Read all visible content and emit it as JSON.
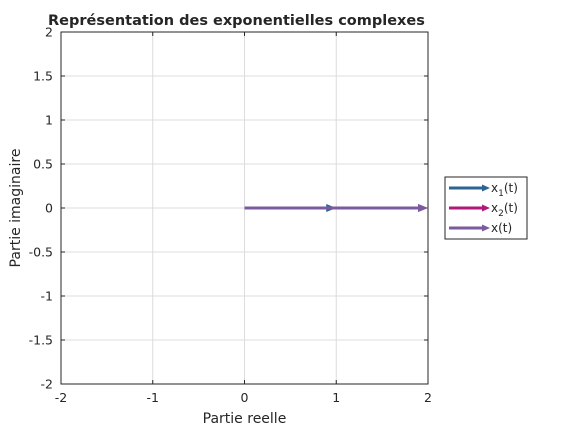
{
  "chart_data": {
    "type": "line",
    "title": "Représentation des exponentielles complexes",
    "xlabel": "Partie reelle",
    "ylabel": "Partie imaginaire",
    "xlim": [
      -2,
      2
    ],
    "ylim": [
      -2,
      2
    ],
    "xticks": [
      -2,
      -1,
      0,
      1,
      2
    ],
    "xtick_labels": [
      "-2",
      "-1",
      "0",
      "1",
      "2"
    ],
    "yticks": [
      2,
      1.5,
      1,
      0.5,
      0,
      -0.5,
      -1,
      -1.5,
      -2
    ],
    "ytick_labels": [
      "2",
      "1.5",
      "1",
      "0.5",
      "0",
      "-0.5",
      "-1",
      "-1.5",
      "-2"
    ],
    "grid": true,
    "legend_placement": "outside-right",
    "series": [
      {
        "base": "x",
        "sub": "1",
        "suffix": "(t)",
        "color": "#2e6494",
        "start": [
          0,
          0
        ],
        "end": [
          1,
          0
        ]
      },
      {
        "base": "x",
        "sub": "2",
        "suffix": "(t)",
        "color": "#b0197a",
        "start": [
          1,
          0
        ],
        "end": [
          2,
          0
        ]
      },
      {
        "base": "x",
        "sub": "",
        "suffix": "(t)",
        "color": "#7b5aa0",
        "start": [
          0,
          0
        ],
        "end": [
          2,
          0
        ]
      }
    ]
  }
}
